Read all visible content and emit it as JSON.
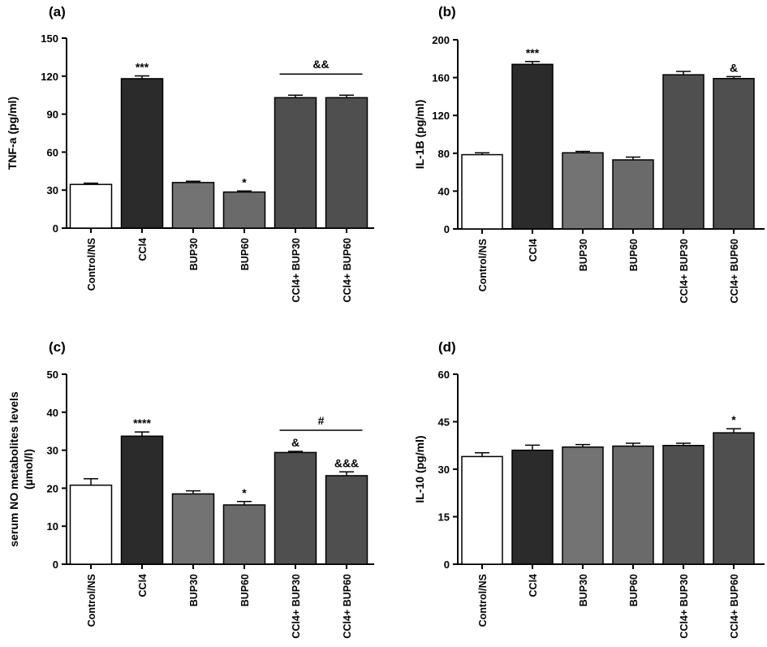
{
  "chart_data": [
    {
      "type": "bar",
      "panel": "(a)",
      "ylabel": "TNF-a (pg/ml)",
      "ylim": [
        0,
        150
      ],
      "yticks": [
        0,
        30,
        60,
        90,
        120,
        150
      ],
      "categories": [
        "Control/NS",
        "CCl4",
        "BUP30",
        "BUP60",
        "CCl4+ BUP30",
        "CCl4+ BUP60"
      ],
      "values": [
        34.5,
        118,
        36,
        28.5,
        103,
        103
      ],
      "errors": [
        1.0,
        2.2,
        1.0,
        0.8,
        2.0,
        2.0
      ],
      "fills": [
        "#ffffff",
        "#2b2b2b",
        "#737373",
        "#6a6a6a",
        "#4f4f4f",
        "#4f4f4f"
      ],
      "annotations": [
        {
          "category": 1,
          "text": "***"
        },
        {
          "category": 3,
          "text": "*"
        }
      ],
      "brackets": [
        {
          "from": 4,
          "to": 5,
          "text": "&&"
        }
      ]
    },
    {
      "type": "bar",
      "panel": "(b)",
      "ylabel": "IL-1B (pg/ml)",
      "ylim": [
        0,
        200
      ],
      "yticks": [
        0,
        40,
        80,
        120,
        160,
        200
      ],
      "categories": [
        "Control/NS",
        "CCl4",
        "BUP30",
        "BUP60",
        "CCl4+ BUP30",
        "CCl4+ BUP60"
      ],
      "values": [
        78.5,
        174,
        80.5,
        73,
        163,
        159
      ],
      "errors": [
        2.0,
        3.0,
        1.5,
        3.0,
        3.5,
        2.0
      ],
      "fills": [
        "#ffffff",
        "#2b2b2b",
        "#737373",
        "#6a6a6a",
        "#4f4f4f",
        "#4f4f4f"
      ],
      "annotations": [
        {
          "category": 1,
          "text": "***"
        },
        {
          "category": 5,
          "text": "&"
        }
      ],
      "brackets": []
    },
    {
      "type": "bar",
      "panel": "(c)",
      "ylabel": "serum NO metabolites levels (µmol/l)",
      "ylabel_lines": [
        "serum NO metabolites levels",
        "(µmol/l)"
      ],
      "ylim": [
        0,
        50
      ],
      "yticks": [
        0,
        10,
        20,
        30,
        40,
        50
      ],
      "categories": [
        "Control/NS",
        "CCl4",
        "BUP30",
        "BUP60",
        "CCl4+ BUP30",
        "CCl4+ BUP60"
      ],
      "values": [
        20.8,
        33.7,
        18.5,
        15.6,
        29.4,
        23.3
      ],
      "errors": [
        1.7,
        1.1,
        0.8,
        0.9,
        0.3,
        1.0
      ],
      "fills": [
        "#ffffff",
        "#2b2b2b",
        "#737373",
        "#6a6a6a",
        "#4f4f4f",
        "#4f4f4f"
      ],
      "annotations": [
        {
          "category": 1,
          "text": "****"
        },
        {
          "category": 3,
          "text": "*"
        },
        {
          "category": 4,
          "text": "&"
        },
        {
          "category": 5,
          "text": "&&&"
        }
      ],
      "brackets": [
        {
          "from": 4,
          "to": 5,
          "text": "#"
        }
      ]
    },
    {
      "type": "bar",
      "panel": "(d)",
      "ylabel": "IL-10 (pg/ml)",
      "ylim": [
        0,
        60
      ],
      "yticks": [
        0,
        15,
        30,
        45,
        60
      ],
      "categories": [
        "Control/NS",
        "CCl4",
        "BUP30",
        "BUP60",
        "CCl4+ BUP30",
        "CCl4+ BUP60"
      ],
      "values": [
        34,
        36,
        37,
        37.3,
        37.5,
        41.5
      ],
      "errors": [
        1.2,
        1.6,
        0.8,
        0.9,
        0.7,
        1.3
      ],
      "fills": [
        "#ffffff",
        "#2b2b2b",
        "#737373",
        "#6a6a6a",
        "#4f4f4f",
        "#4f4f4f"
      ],
      "annotations": [
        {
          "category": 5,
          "text": "*"
        }
      ],
      "brackets": []
    }
  ]
}
